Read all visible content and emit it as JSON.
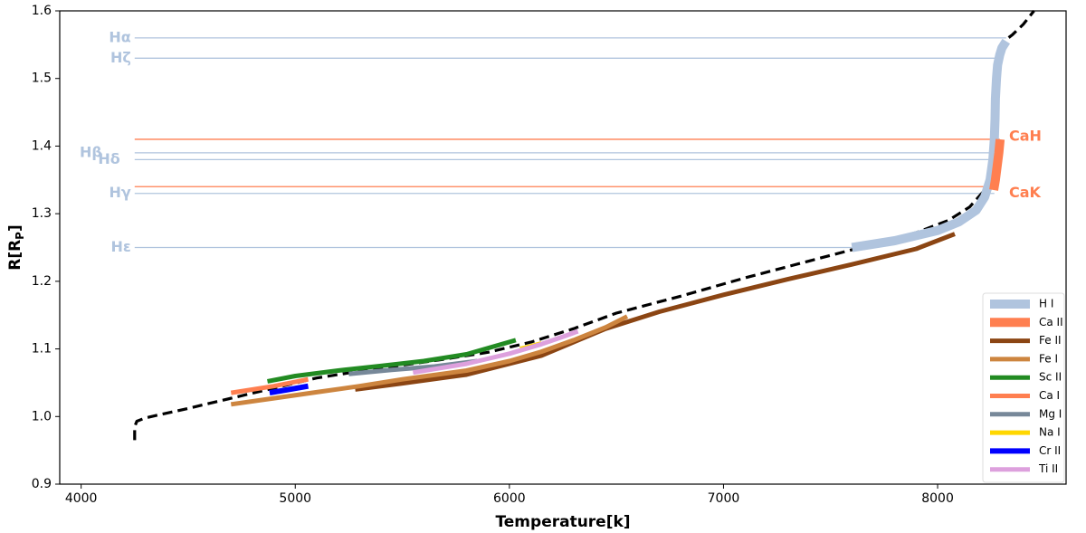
{
  "chart_data": {
    "type": "line",
    "xlabel": "Temperature[k]",
    "ylabel": "R[R",
    "ylabel_sub": "P",
    "ylabel_close": "]",
    "xlim": [
      3900,
      8600
    ],
    "ylim": [
      0.9,
      1.6
    ],
    "x_ticks": [
      4000,
      5000,
      6000,
      7000,
      8000
    ],
    "y_ticks": [
      0.9,
      1.0,
      1.1,
      1.2,
      1.3,
      1.4,
      1.5,
      1.6
    ],
    "x_tick_labels": [
      "4000",
      "5000",
      "6000",
      "7000",
      "8000"
    ],
    "y_tick_labels": [
      "0.9",
      "1.0",
      "1.1",
      "1.2",
      "1.3",
      "1.4",
      "1.5",
      "1.6"
    ],
    "grid": false,
    "legend_position": "bottom-right",
    "profile": {
      "style": "dashed",
      "color": "#000000",
      "x": [
        4250,
        4250,
        4260,
        4300,
        4500,
        4700,
        4900,
        5100,
        5300,
        5500,
        5700,
        5900,
        6100,
        6300,
        6500,
        6800,
        7100,
        7400,
        7700,
        7900,
        8050,
        8150,
        8220,
        8255,
        8270,
        8275,
        8280,
        8290,
        8310,
        8350,
        8400,
        8450
      ],
      "y": [
        0.965,
        0.985,
        0.993,
        0.998,
        1.012,
        1.027,
        1.042,
        1.057,
        1.067,
        1.076,
        1.085,
        1.095,
        1.11,
        1.13,
        1.153,
        1.178,
        1.205,
        1.23,
        1.255,
        1.272,
        1.29,
        1.31,
        1.335,
        1.37,
        1.42,
        1.46,
        1.5,
        1.535,
        1.555,
        1.565,
        1.58,
        1.6
      ]
    },
    "series": [
      {
        "name": "H I",
        "color": "#b0c4de",
        "width": 10,
        "x": [
          7600,
          7800,
          8000,
          8100,
          8180,
          8220,
          8245,
          8258,
          8265,
          8268,
          8270,
          8275,
          8280,
          8290,
          8300,
          8320
        ],
        "y": [
          1.25,
          1.26,
          1.275,
          1.288,
          1.305,
          1.325,
          1.35,
          1.38,
          1.41,
          1.44,
          1.47,
          1.5,
          1.52,
          1.535,
          1.545,
          1.555
        ]
      },
      {
        "name": "Ca II",
        "color": "#ff7f50",
        "width": 10,
        "x": [
          8262,
          8270,
          8278,
          8286,
          8292
        ],
        "y": [
          1.335,
          1.35,
          1.37,
          1.39,
          1.41
        ]
      },
      {
        "name": "Fe II",
        "color": "#8b4513",
        "width": 5,
        "x": [
          5280,
          5500,
          5800,
          6000,
          6150,
          6300,
          6450,
          6700,
          7000,
          7300,
          7600,
          7900,
          8080
        ],
        "y": [
          1.04,
          1.049,
          1.062,
          1.078,
          1.09,
          1.11,
          1.13,
          1.155,
          1.18,
          1.203,
          1.225,
          1.248,
          1.27
        ]
      },
      {
        "name": "Fe I",
        "color": "#cd853f",
        "width": 5,
        "x": [
          4700,
          4900,
          5100,
          5300,
          5500,
          5800,
          6000,
          6150,
          6300,
          6450,
          6550
        ],
        "y": [
          1.018,
          1.027,
          1.036,
          1.045,
          1.055,
          1.068,
          1.082,
          1.096,
          1.113,
          1.132,
          1.148
        ]
      },
      {
        "name": "Sc II",
        "color": "#228b22",
        "width": 5,
        "x": [
          4870,
          5000,
          5200,
          5400,
          5600,
          5800,
          6030
        ],
        "y": [
          1.052,
          1.06,
          1.068,
          1.075,
          1.082,
          1.092,
          1.113
        ]
      },
      {
        "name": "Ca I",
        "color": "#ff7f50",
        "width": 5,
        "x": [
          4700,
          4900,
          5060
        ],
        "y": [
          1.035,
          1.045,
          1.055
        ]
      },
      {
        "name": "Mg I",
        "color": "#778899",
        "width": 5,
        "x": [
          5250,
          5450,
          5650,
          5850
        ],
        "y": [
          1.063,
          1.069,
          1.074,
          1.082
        ]
      },
      {
        "name": "Na I",
        "color": "#ffd700",
        "width": 5,
        "x": [
          6050,
          6150
        ],
        "y": [
          1.1,
          1.108
        ]
      },
      {
        "name": "Cr II",
        "color": "#0000ff",
        "width": 6,
        "x": [
          4880,
          4970,
          5060
        ],
        "y": [
          1.035,
          1.04,
          1.045
        ]
      },
      {
        "name": "Ti II",
        "color": "#dda0dd",
        "width": 5,
        "x": [
          5550,
          5800,
          6000,
          6150,
          6250,
          6320
        ],
        "y": [
          1.065,
          1.078,
          1.093,
          1.107,
          1.118,
          1.126
        ]
      }
    ],
    "reference_lines": [
      {
        "label": "Hα",
        "y": 1.56,
        "color": "#b0c4de",
        "x_start": 4250,
        "x_end": 8320
      },
      {
        "label": "Hζ",
        "y": 1.53,
        "color": "#b0c4de",
        "x_start": 4250,
        "x_end": 8300
      },
      {
        "label": "CaH",
        "y": 1.41,
        "color": "#ff7f50",
        "x_start": 4250,
        "x_end": 8290
      },
      {
        "label": "Hβ",
        "y": 1.39,
        "color": "#b0c4de",
        "x_start": 4250,
        "x_end": 8290
      },
      {
        "label": "Hδ",
        "y": 1.38,
        "color": "#b0c4de",
        "x_start": 4250,
        "x_end": 8280
      },
      {
        "label": "CaK",
        "y": 1.34,
        "color": "#ff7f50",
        "x_start": 4250,
        "x_end": 8270
      },
      {
        "label": "Hγ",
        "y": 1.33,
        "color": "#b0c4de",
        "x_start": 4250,
        "x_end": 8265
      },
      {
        "label": "Hε",
        "y": 1.25,
        "color": "#b0c4de",
        "x_start": 4250,
        "x_end": 7620
      }
    ]
  }
}
